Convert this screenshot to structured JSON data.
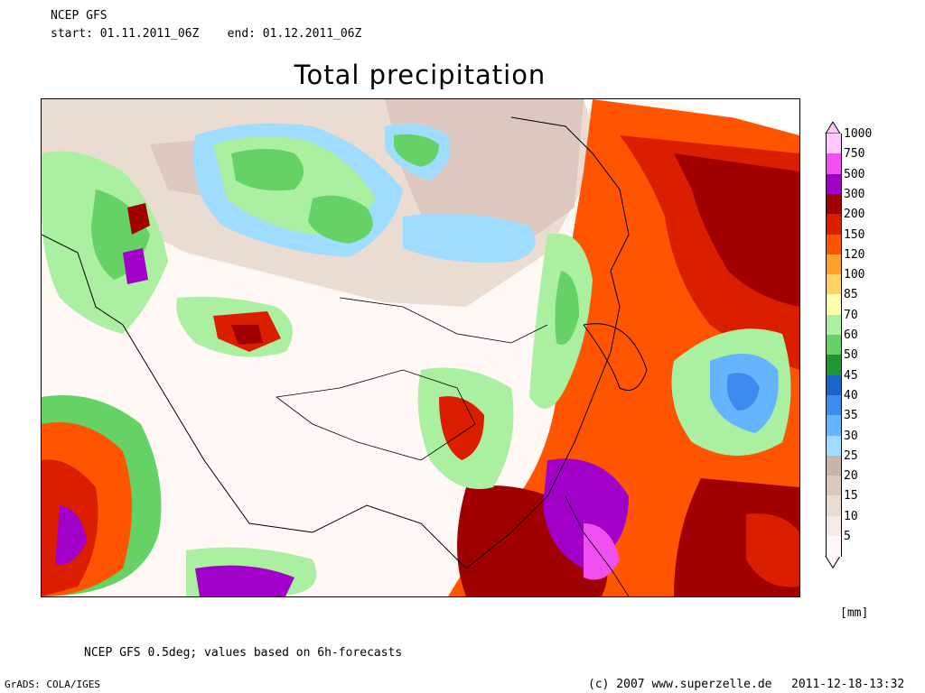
{
  "header": {
    "model": "NCEP GFS",
    "run": "start: 01.11.2011_06Z    end: 01.12.2011_06Z"
  },
  "title": "Total precipitation",
  "legend": {
    "unit": "[mm]",
    "levels": [
      {
        "label": "1000",
        "color": "#ffc8ff"
      },
      {
        "label": "750",
        "color": "#f050f0"
      },
      {
        "label": "500",
        "color": "#a000c8"
      },
      {
        "label": "300",
        "color": "#a00000"
      },
      {
        "label": "200",
        "color": "#dc1e00"
      },
      {
        "label": "150",
        "color": "#ff5500"
      },
      {
        "label": "120",
        "color": "#ffa028"
      },
      {
        "label": "100",
        "color": "#ffd264"
      },
      {
        "label": "85",
        "color": "#ffffaa"
      },
      {
        "label": "70",
        "color": "#aaf0a0"
      },
      {
        "label": "60",
        "color": "#64d264"
      },
      {
        "label": "50",
        "color": "#1e9632"
      },
      {
        "label": "45",
        "color": "#1e64c8"
      },
      {
        "label": "40",
        "color": "#3c8cf0"
      },
      {
        "label": "35",
        "color": "#64b4ff"
      },
      {
        "label": "30",
        "color": "#a0dcff"
      },
      {
        "label": "25",
        "color": "#c8b4aa"
      },
      {
        "label": "20",
        "color": "#dcc8be"
      },
      {
        "label": "15",
        "color": "#ebdcd2"
      },
      {
        "label": "10",
        "color": "#f5ebe6"
      },
      {
        "label": "5",
        "color": "#fff8f5"
      }
    ]
  },
  "footer": {
    "note": "NCEP GFS 0.5deg; values based on 6h-forecasts",
    "grads": "GrADS: COLA/IGES",
    "copyright": "(c) 2007 www.superzelle.de",
    "timestamp": "2011-12-18-13:32"
  }
}
